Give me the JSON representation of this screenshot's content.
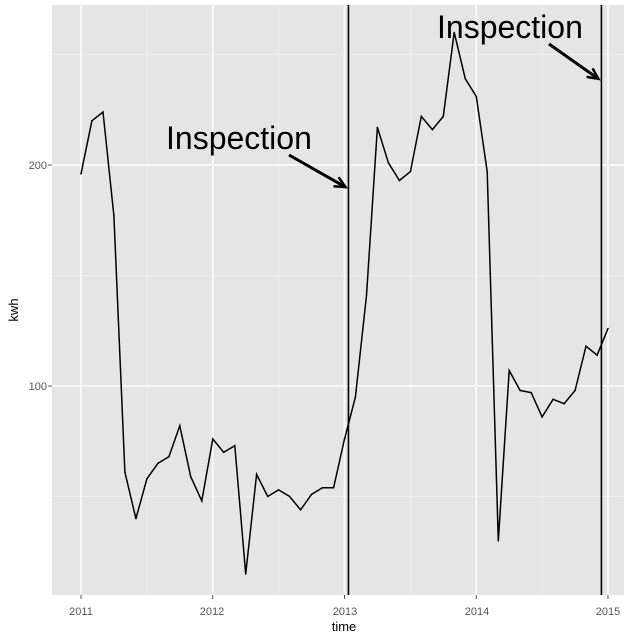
{
  "chart_data": {
    "type": "line",
    "title": "",
    "xlabel": "time",
    "ylabel": "kwh",
    "x_ticks": [
      "2011",
      "2012",
      "2013",
      "2014",
      "2015"
    ],
    "y_ticks": [
      "100",
      "200"
    ],
    "xlim": [
      2010.8,
      2015.1
    ],
    "ylim": [
      12,
      268
    ],
    "grid": true,
    "series": [
      {
        "x": [
          2011.0,
          2011.083,
          2011.167,
          2011.25,
          2011.333,
          2011.417,
          2011.5,
          2011.583,
          2011.667,
          2011.75,
          2011.833,
          2011.917,
          2012.0,
          2012.083,
          2012.167,
          2012.25,
          2012.333,
          2012.417,
          2012.5,
          2012.583,
          2012.667,
          2012.75,
          2012.833,
          2012.917,
          2013.0,
          2013.083,
          2013.167,
          2013.25,
          2013.333,
          2013.417,
          2013.5,
          2013.583,
          2013.667,
          2013.75,
          2013.833,
          2013.917,
          2014.0,
          2014.083,
          2014.167,
          2014.25,
          2014.333,
          2014.417,
          2014.5,
          2014.583,
          2014.667,
          2014.75,
          2014.833,
          2014.917,
          2015.0
        ],
        "values": [
          196,
          220,
          224,
          177,
          61,
          40,
          58,
          65,
          68,
          82,
          59,
          48,
          76,
          70,
          73,
          15,
          60,
          50,
          53,
          50,
          44,
          51,
          54,
          54,
          76,
          95,
          141,
          217,
          201,
          193,
          197,
          222,
          216,
          222,
          260,
          239,
          231,
          197,
          30,
          107,
          98,
          97,
          86,
          94,
          92,
          98,
          118,
          114,
          126
        ]
      }
    ],
    "vlines": [
      2013.03,
      2014.95
    ],
    "annotations": [
      {
        "text": "Inspection",
        "arrow_to": [
          2013.03,
          190
        ]
      },
      {
        "text": "Inspection",
        "arrow_to": [
          2014.95,
          239
        ]
      }
    ],
    "colors": {
      "panel": "#e5e5e5",
      "grid_major": "#ffffff",
      "grid_minor": "#f0f0f0",
      "line": "#000000"
    }
  }
}
